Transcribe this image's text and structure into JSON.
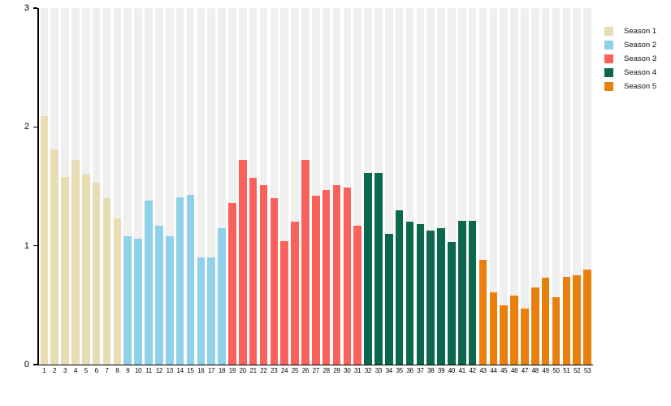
{
  "chart_data": {
    "type": "bar",
    "title": "",
    "xlabel": "",
    "ylabel": "",
    "ylim": [
      0,
      3
    ],
    "yticks": [
      "0",
      "1",
      "2",
      "3"
    ],
    "grid": "light vertical stripe behind every bar",
    "legend_position": "top-right",
    "categories": [
      1,
      2,
      3,
      4,
      5,
      6,
      7,
      8,
      9,
      10,
      11,
      12,
      13,
      14,
      15,
      16,
      17,
      18,
      19,
      20,
      21,
      22,
      23,
      24,
      25,
      26,
      27,
      28,
      29,
      30,
      31,
      32,
      33,
      34,
      35,
      36,
      37,
      38,
      39,
      40,
      41,
      42,
      43,
      44,
      45,
      46,
      47,
      48,
      49,
      50,
      51,
      52,
      53
    ],
    "series": [
      {
        "name": "Season 1",
        "color": "#e8dcb4",
        "episodes": [
          1,
          2,
          3,
          4,
          5,
          6,
          7,
          8
        ],
        "values": [
          2.09,
          1.81,
          1.58,
          1.72,
          1.6,
          1.53,
          1.4,
          1.23
        ]
      },
      {
        "name": "Season 2",
        "color": "#8fd1e9",
        "episodes": [
          9,
          10,
          11,
          12,
          13,
          14,
          15,
          16,
          17,
          18
        ],
        "values": [
          1.08,
          1.06,
          1.38,
          1.17,
          1.08,
          1.41,
          1.43,
          0.9,
          0.9,
          1.15
        ]
      },
      {
        "name": "Season 3",
        "color": "#f9625a",
        "episodes": [
          19,
          20,
          21,
          22,
          23,
          24,
          25,
          26,
          27,
          28,
          29,
          30,
          31
        ],
        "values": [
          1.36,
          1.72,
          1.57,
          1.51,
          1.4,
          1.04,
          1.2,
          1.72,
          1.42,
          1.47,
          1.51,
          1.49,
          1.17
        ]
      },
      {
        "name": "Season 4",
        "color": "#0b684c",
        "episodes": [
          32,
          33,
          34,
          35,
          36,
          37,
          38,
          39,
          40,
          41,
          42
        ],
        "values": [
          1.61,
          1.61,
          1.1,
          1.3,
          1.2,
          1.18,
          1.13,
          1.15,
          1.03,
          1.21,
          1.21
        ]
      },
      {
        "name": "Season 5",
        "color": "#e9800e",
        "episodes": [
          43,
          44,
          45,
          46,
          47,
          48,
          49,
          50,
          51,
          52,
          53
        ],
        "values": [
          0.88,
          0.61,
          0.5,
          0.58,
          0.47,
          0.65,
          0.73,
          0.57,
          0.74,
          0.75,
          0.8
        ]
      }
    ]
  },
  "legend": {
    "items": [
      {
        "label": "Season 1",
        "color": "#e8dcb4"
      },
      {
        "label": "Season 2",
        "color": "#8fd1e9"
      },
      {
        "label": "Season 3",
        "color": "#f9625a"
      },
      {
        "label": "Season 4",
        "color": "#0b684c"
      },
      {
        "label": "Season 5",
        "color": "#e9800e"
      }
    ]
  },
  "style": {
    "stripe_color": "#efefef",
    "axis_color": "#000000",
    "background": "#ffffff"
  }
}
